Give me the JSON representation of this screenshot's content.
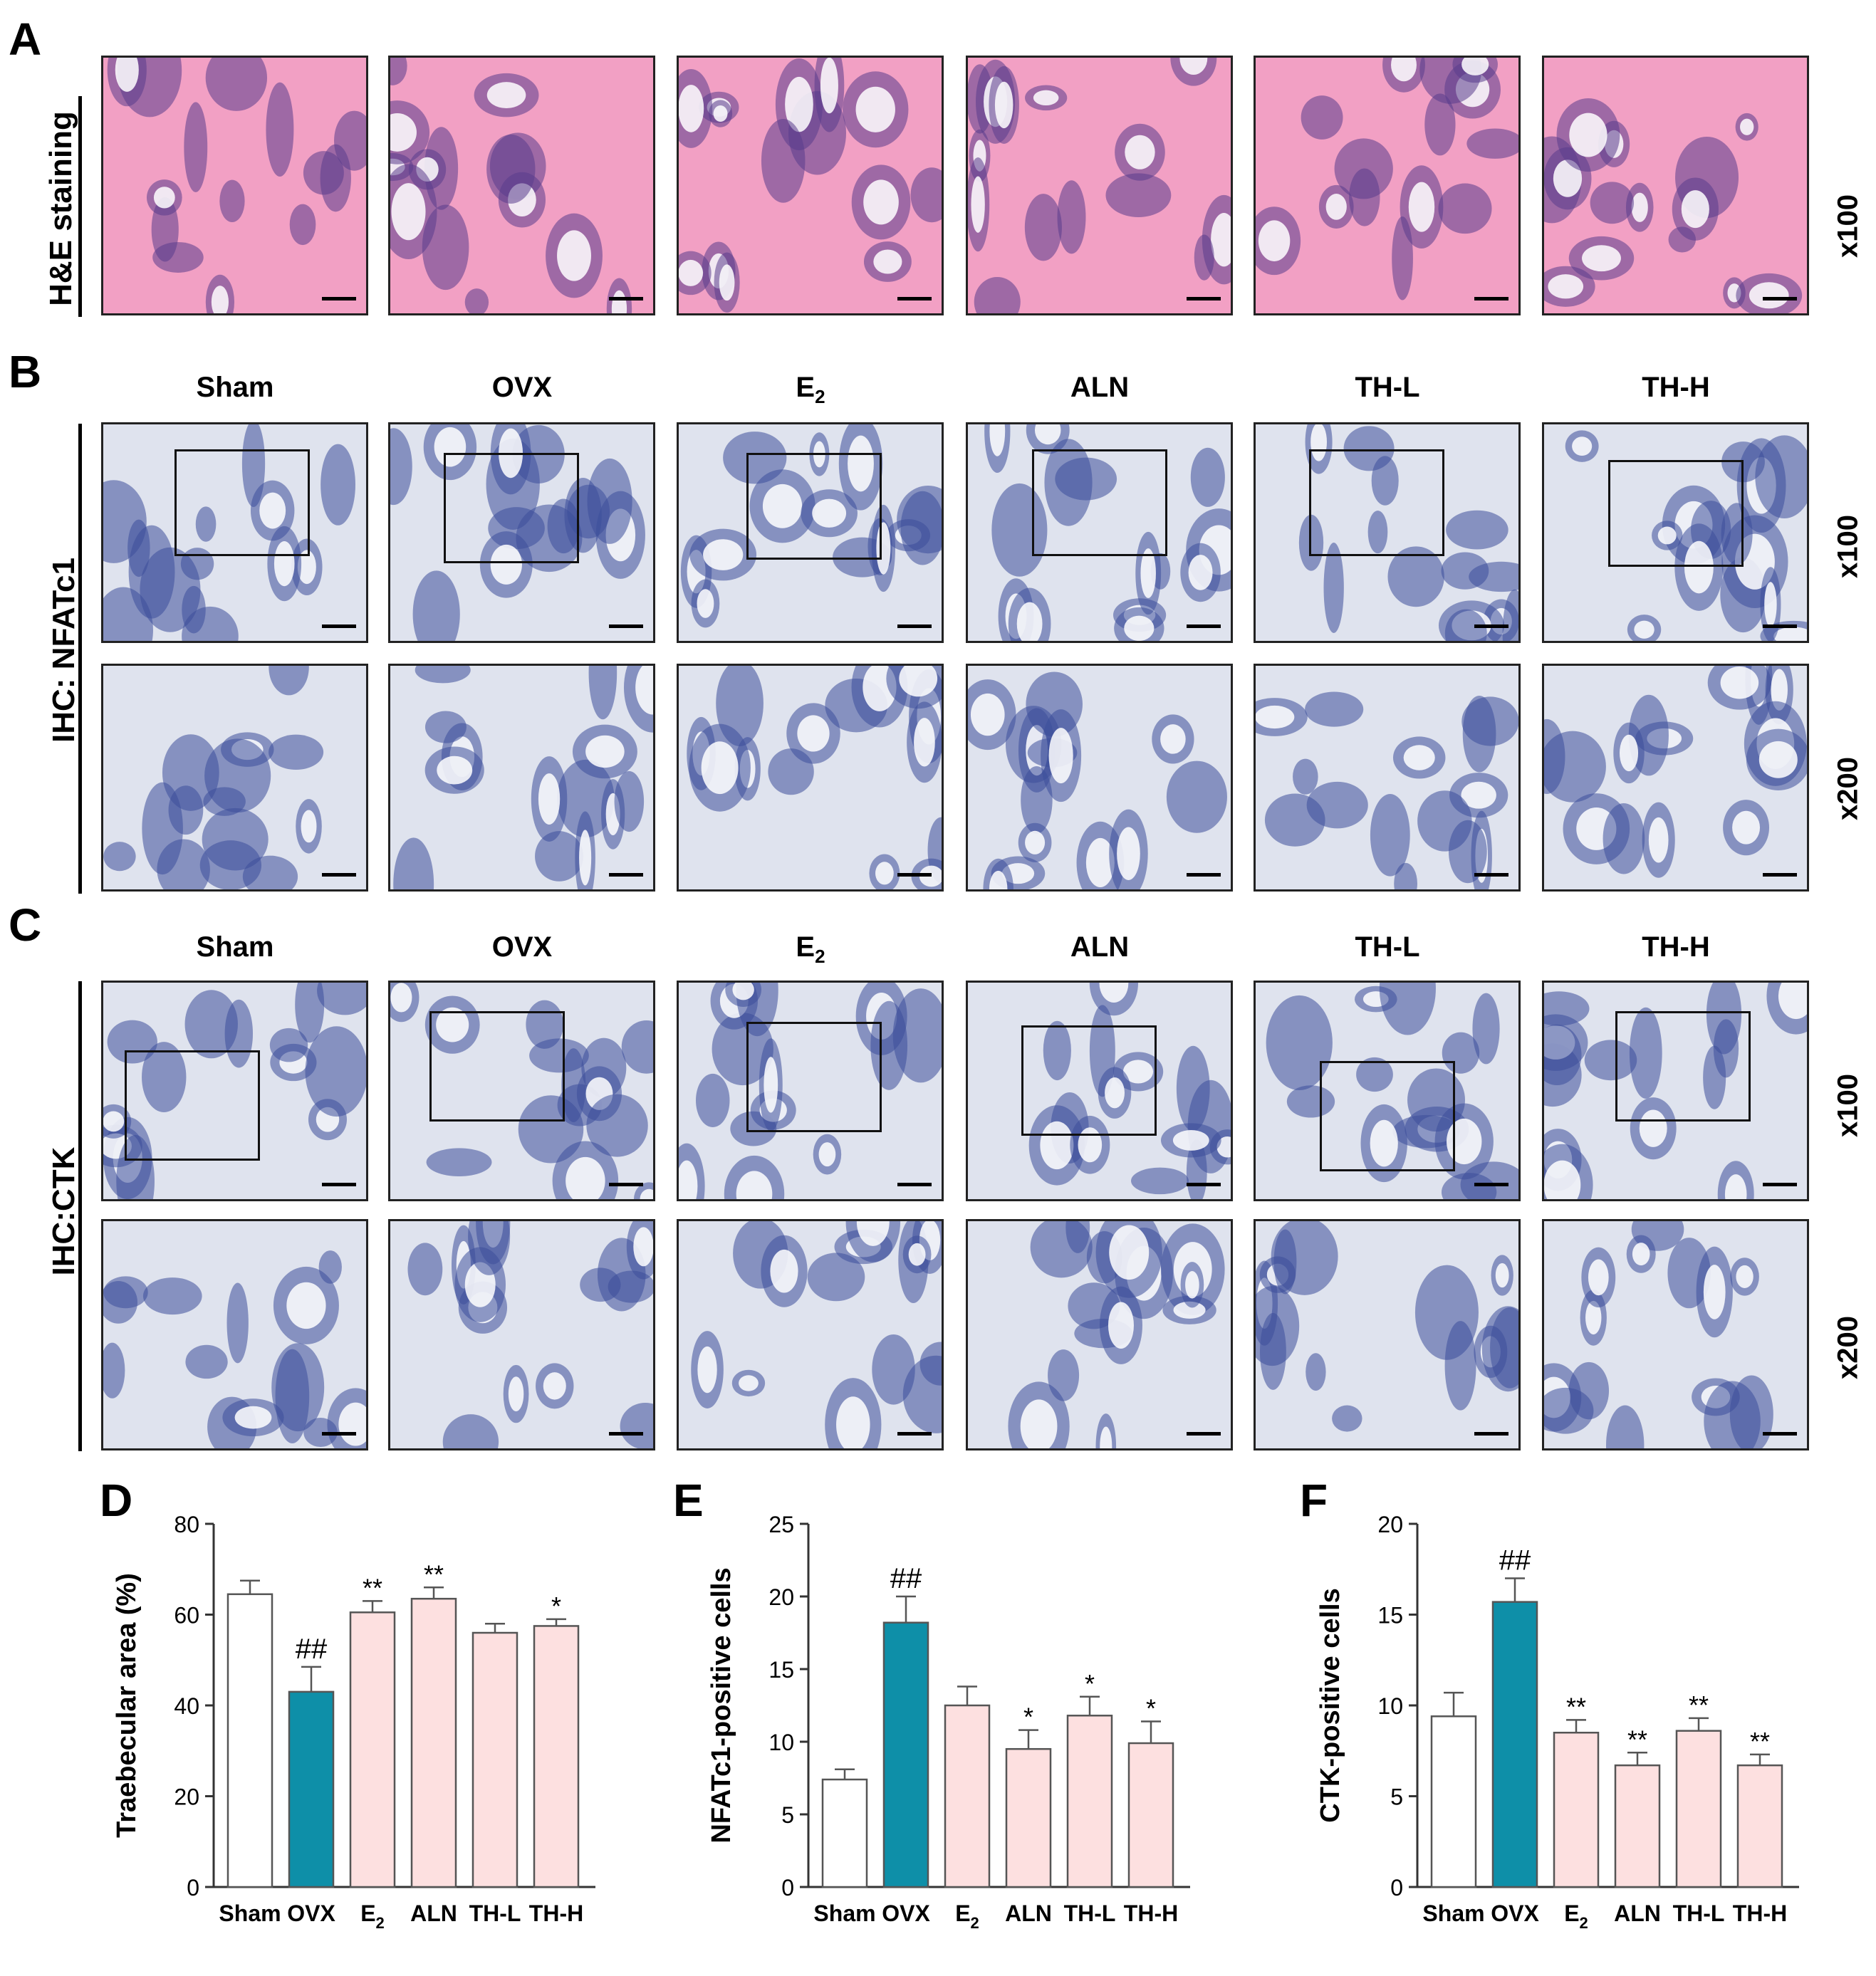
{
  "panels": {
    "A": {
      "letter": "A",
      "row_label": "H&E staining",
      "magnification": "x100"
    },
    "B": {
      "letter": "B",
      "row_label": "IHC: NFATc1",
      "magnifications": [
        "x100",
        "x200"
      ]
    },
    "C": {
      "letter": "C",
      "row_label": "IHC:CTK",
      "magnifications": [
        "x100",
        "x200"
      ]
    },
    "D": {
      "letter": "D"
    },
    "E": {
      "letter": "E"
    },
    "F": {
      "letter": "F"
    }
  },
  "groups": [
    {
      "label": "Sham",
      "sub": ""
    },
    {
      "label": "OVX",
      "sub": ""
    },
    {
      "label": "E",
      "sub": "2"
    },
    {
      "label": "ALN",
      "sub": ""
    },
    {
      "label": "TH-L",
      "sub": ""
    },
    {
      "label": "TH-H",
      "sub": ""
    }
  ],
  "colors": {
    "he_pink": "#f2a0c4",
    "he_purple": "#5a3c8c",
    "ihc_bg": "#dfe3ee",
    "ihc_blue": "#3d4f9a",
    "bar_sham": "#ffffff",
    "bar_ovx": "#0e8fa8",
    "bar_treated": "#fde0e0"
  },
  "chart_data": [
    {
      "type": "bar",
      "panel": "D",
      "categories": [
        "Sham",
        "OVX",
        "E2",
        "ALN",
        "TH-L",
        "TH-H"
      ],
      "values": [
        64.5,
        43,
        60.5,
        63.5,
        56,
        57.5
      ],
      "errors": [
        3,
        5.5,
        2.5,
        2.5,
        2,
        1.5
      ],
      "annotations": [
        "",
        "##",
        "**",
        "**",
        "",
        "*"
      ],
      "ylabel": "Traebecular area (%)",
      "ylim": [
        0,
        80
      ],
      "yticks": [
        0,
        20,
        40,
        60,
        80
      ]
    },
    {
      "type": "bar",
      "panel": "E",
      "categories": [
        "Sham",
        "OVX",
        "E2",
        "ALN",
        "TH-L",
        "TH-H"
      ],
      "values": [
        7.4,
        18.2,
        12.5,
        9.5,
        11.8,
        9.9
      ],
      "errors": [
        0.7,
        1.8,
        1.3,
        1.3,
        1.3,
        1.5
      ],
      "annotations": [
        "",
        "##",
        "",
        "*",
        "*",
        "*"
      ],
      "ylabel": "NFATc1-positive cells",
      "ylim": [
        0,
        25
      ],
      "yticks": [
        0,
        5,
        10,
        15,
        20,
        25
      ]
    },
    {
      "type": "bar",
      "panel": "F",
      "categories": [
        "Sham",
        "OVX",
        "E2",
        "ALN",
        "TH-L",
        "TH-H"
      ],
      "values": [
        9.4,
        15.7,
        8.5,
        6.7,
        8.6,
        6.7
      ],
      "errors": [
        1.3,
        1.3,
        0.7,
        0.7,
        0.7,
        0.6
      ],
      "annotations": [
        "",
        "##",
        "**",
        "**",
        "**",
        "**"
      ],
      "ylabel": "CTK-positive cells",
      "ylim": [
        0,
        20
      ],
      "yticks": [
        0,
        5,
        10,
        15,
        20
      ]
    }
  ]
}
